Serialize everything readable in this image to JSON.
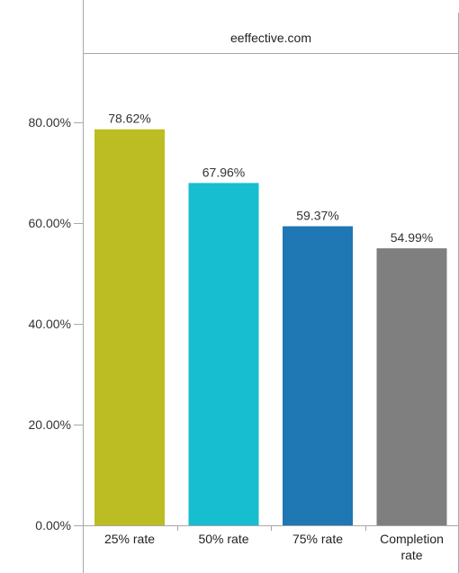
{
  "chart_data": {
    "type": "bar",
    "title": "eeffective.com",
    "categories": [
      "25% rate",
      "50% rate",
      "75% rate",
      "Completion rate"
    ],
    "category_lines": [
      [
        "25% rate"
      ],
      [
        "50% rate"
      ],
      [
        "75% rate"
      ],
      [
        "Completion",
        "rate"
      ]
    ],
    "values": [
      78.62,
      67.96,
      59.37,
      54.99
    ],
    "value_labels": [
      "78.62%",
      "67.96%",
      "59.37%",
      "54.99%"
    ],
    "colors": [
      "#bcbd22",
      "#17becf",
      "#1f77b4",
      "#7f7f7f"
    ],
    "ylim": [
      0,
      100
    ],
    "yticks": [
      0,
      20,
      40,
      60,
      80
    ],
    "ytick_labels": [
      "0.00%",
      "20.00%",
      "40.00%",
      "60.00%",
      "80.00%"
    ],
    "xlabel": "",
    "ylabel": "",
    "grid": false,
    "legend": "none"
  }
}
